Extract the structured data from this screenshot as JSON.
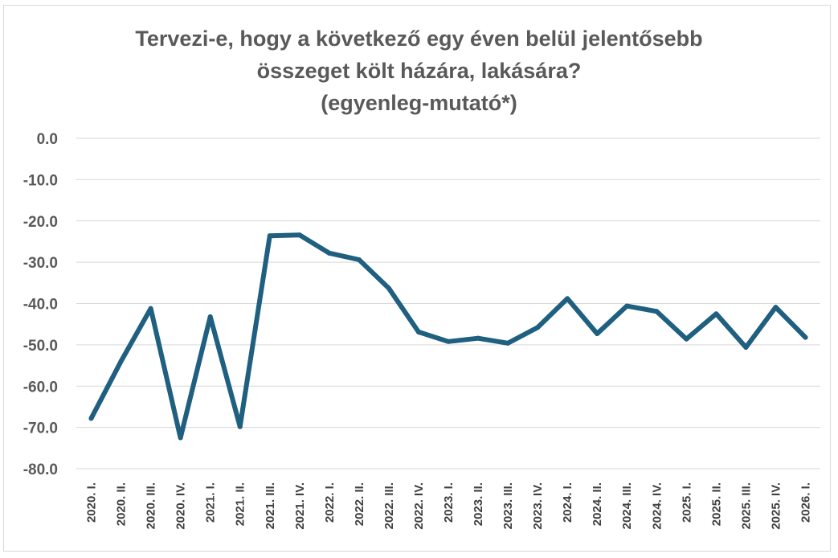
{
  "chart_data": {
    "type": "line",
    "title_lines": [
      "Tervezi-e, hogy a következő egy éven belül jelentősebb",
      "összeget költ házára, lakására?",
      "(egyenleg-mutató*)"
    ],
    "xlabel": "",
    "ylabel": "",
    "ylim": [
      -80,
      0
    ],
    "y_ticks": [
      "0.0",
      "-10.0",
      "-20.0",
      "-30.0",
      "-40.0",
      "-50.0",
      "-60.0",
      "-70.0",
      "-80.0"
    ],
    "grid": true,
    "legend": "none",
    "line_color": "#1f5f7f",
    "categories": [
      "2020. I.",
      "2020. II.",
      "2020. III.",
      "2020. IV.",
      "2021. I.",
      "2021. II.",
      "2021. III.",
      "2021. IV.",
      "2022. I.",
      "2022. II.",
      "2022. III.",
      "2022. IV.",
      "2023. I.",
      "2023. II.",
      "2023. III.",
      "2023. IV.",
      "2024. I.",
      "2024. II.",
      "2024. III.",
      "2024. IV.",
      "2025. I.",
      "2025. II.",
      "2025. III.",
      "2025. IV.",
      "2026. I."
    ],
    "values": [
      -67.8,
      -54.0,
      -41.2,
      -72.5,
      -43.2,
      -69.8,
      -23.6,
      -23.4,
      -27.8,
      -29.4,
      -36.3,
      -46.9,
      -49.2,
      -48.4,
      -49.6,
      -45.8,
      -38.8,
      -47.3,
      -40.6,
      -41.9,
      -48.6,
      -42.5,
      -50.6,
      -40.9,
      -48.2
    ]
  }
}
